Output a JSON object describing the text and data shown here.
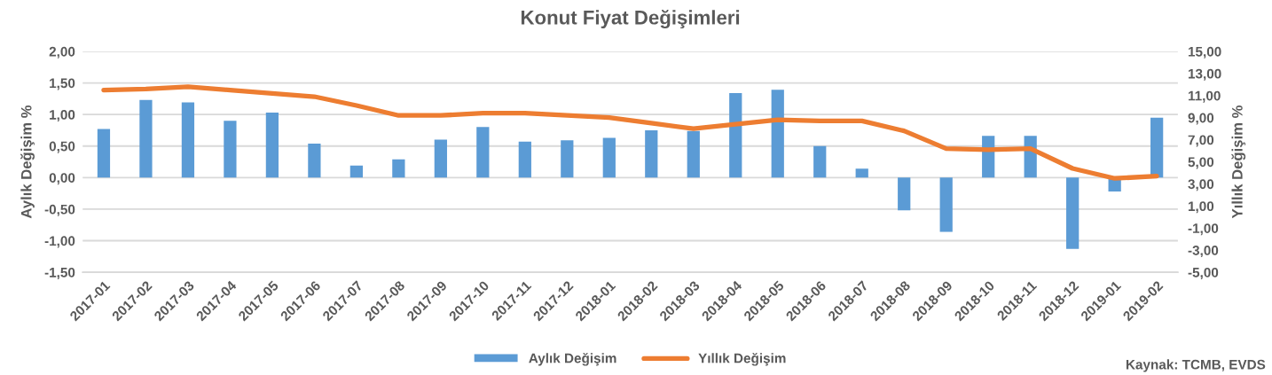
{
  "chart_data": {
    "type": "bar",
    "title": "Konut Fiyat Değişimleri",
    "ylabel": "Aylık Değişim %",
    "y2label": "Yıllık Değişim %",
    "categories": [
      "2017-01",
      "2017-02",
      "2017-03",
      "2017-04",
      "2017-05",
      "2017-06",
      "2017-07",
      "2017-08",
      "2017-09",
      "2017-10",
      "2017-11",
      "2017-12",
      "2018-01",
      "2018-02",
      "2018-03",
      "2018-04",
      "2018-05",
      "2018-06",
      "2018-07",
      "2018-08",
      "2018-09",
      "2018-10",
      "2018-11",
      "2018-12",
      "2019-01",
      "2019-02"
    ],
    "series": [
      {
        "name": "Aylık Değişim",
        "color": "#5b9bd5",
        "values": [
          0.77,
          1.23,
          1.19,
          0.9,
          1.03,
          0.54,
          0.19,
          0.29,
          0.6,
          0.8,
          0.57,
          0.59,
          0.63,
          0.75,
          0.74,
          1.34,
          1.39,
          0.5,
          0.14,
          -0.52,
          -0.86,
          0.66,
          0.66,
          -1.13,
          -0.22,
          0.95
        ]
      },
      {
        "name": "Yıllık Değişim",
        "type": "line",
        "axis": "y2",
        "color": "#ed7d31",
        "values": [
          11.5,
          11.6,
          11.8,
          11.5,
          11.2,
          10.9,
          10.1,
          9.2,
          9.2,
          9.4,
          9.4,
          9.2,
          9.0,
          8.5,
          8.0,
          8.4,
          8.8,
          8.7,
          8.7,
          7.8,
          6.2,
          6.1,
          6.2,
          4.4,
          3.5,
          3.7
        ]
      }
    ],
    "ylim": [
      -1.5,
      2.0
    ],
    "yticks": [
      {
        "value": -1.5,
        "label": "-1,50"
      },
      {
        "value": -1.0,
        "label": "-1,00"
      },
      {
        "value": -0.5,
        "label": "-0,50"
      },
      {
        "value": 0,
        "label": "0,00"
      },
      {
        "value": 0.5,
        "label": "0,50"
      },
      {
        "value": 1.0,
        "label": "1,00"
      },
      {
        "value": 1.5,
        "label": "1,50"
      },
      {
        "value": 2.0,
        "label": "2,00"
      }
    ],
    "y2lim": [
      -5,
      15
    ],
    "y2ticks": [
      {
        "value": -5,
        "label": "-5,00"
      },
      {
        "value": -3,
        "label": "-3,00"
      },
      {
        "value": -1,
        "label": "-1,00"
      },
      {
        "value": 1,
        "label": "1,00"
      },
      {
        "value": 3,
        "label": "3,00"
      },
      {
        "value": 5,
        "label": "5,00"
      },
      {
        "value": 7,
        "label": "7,00"
      },
      {
        "value": 9,
        "label": "9,00"
      },
      {
        "value": 11,
        "label": "11,00"
      },
      {
        "value": 13,
        "label": "13,00"
      },
      {
        "value": 15,
        "label": "15,00"
      }
    ],
    "grid": "y",
    "legend": "bottom",
    "line_style": "solid",
    "annotations": [
      "Kaynak: TCMB, EVDS"
    ]
  }
}
